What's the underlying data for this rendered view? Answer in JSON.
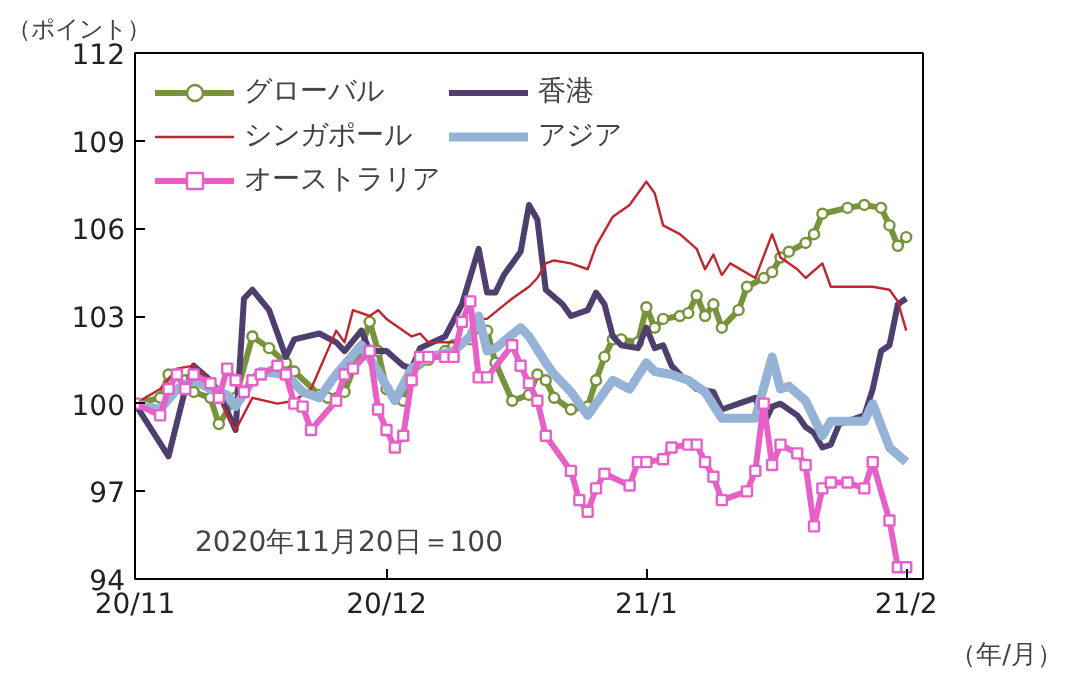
{
  "chart_data": {
    "type": "line",
    "ylabel": "（ポイント）",
    "xlabel": "（年/月）",
    "annotations": [
      "2020年11月20日＝100"
    ],
    "xlim": [
      "2020-11-01",
      "2021-02-03"
    ],
    "ylim": [
      94,
      112
    ],
    "xticks": [
      {
        "value": "2020-11-01",
        "label": "20/11"
      },
      {
        "value": "2020-12-01",
        "label": "20/12"
      },
      {
        "value": "2021-01-01",
        "label": "21/1"
      },
      {
        "value": "2021-02-01",
        "label": "21/2"
      }
    ],
    "yticks": [
      94,
      97,
      100,
      103,
      106,
      109,
      112
    ],
    "grid": false,
    "legend": "top left",
    "series": [
      {
        "name": "グローバル",
        "color": "#77933c",
        "marker": "circle",
        "x": [
          "2020-11-01",
          "2020-11-04",
          "2020-11-05",
          "2020-11-07",
          "2020-11-08",
          "2020-11-10",
          "2020-11-11",
          "2020-11-13",
          "2020-11-15",
          "2020-11-17",
          "2020-11-19",
          "2020-11-20",
          "2020-11-23",
          "2020-11-24",
          "2020-11-26",
          "2020-11-28",
          "2020-11-29",
          "2020-11-30",
          "2020-12-01",
          "2020-12-03",
          "2020-12-04",
          "2020-12-06",
          "2020-12-08",
          "2020-12-09",
          "2020-12-11",
          "2020-12-12",
          "2020-12-13",
          "2020-12-14",
          "2020-12-16",
          "2020-12-18",
          "2020-12-19",
          "2020-12-20",
          "2020-12-21",
          "2020-12-23",
          "2020-12-25",
          "2020-12-26",
          "2020-12-27",
          "2020-12-28",
          "2020-12-29",
          "2020-12-31",
          "2021-01-01",
          "2021-01-02",
          "2021-01-03",
          "2021-01-05",
          "2021-01-06",
          "2021-01-07",
          "2021-01-08",
          "2021-01-09",
          "2021-01-10",
          "2021-01-12",
          "2021-01-13",
          "2021-01-15",
          "2021-01-16",
          "2021-01-17",
          "2021-01-18",
          "2021-01-20",
          "2021-01-21",
          "2021-01-22",
          "2021-01-25",
          "2021-01-27",
          "2021-01-29",
          "2021-01-30",
          "2021-01-31",
          "2021-02-01"
        ],
        "values": [
          100,
          100.2,
          101.0,
          100.8,
          100.4,
          100.2,
          99.3,
          100.2,
          102.3,
          101.9,
          101.4,
          101.1,
          100.3,
          100.2,
          100.4,
          101.9,
          102.8,
          101.8,
          100.5,
          100.1,
          101.1,
          101.5,
          101.8,
          102.0,
          102.2,
          102.6,
          102.5,
          101.4,
          100.1,
          100.3,
          101.0,
          100.8,
          100.2,
          99.8,
          99.9,
          100.8,
          101.6,
          102.2,
          102.2,
          102.1,
          103.3,
          102.6,
          102.9,
          103.0,
          103.1,
          103.7,
          103.0,
          103.4,
          102.6,
          103.2,
          104.0,
          104.3,
          104.5,
          105.0,
          105.2,
          105.5,
          105.8,
          106.5,
          106.7,
          106.8,
          106.7,
          106.1,
          105.4,
          105.7
        ]
      },
      {
        "name": "香港",
        "color": "#4f3f6e",
        "marker": "none",
        "x": [
          "2020-11-01",
          "2020-11-05",
          "2020-11-07",
          "2020-11-08",
          "2020-11-10",
          "2020-11-11",
          "2020-11-13",
          "2020-11-14",
          "2020-11-15",
          "2020-11-17",
          "2020-11-18",
          "2020-11-19",
          "2020-11-20",
          "2020-11-23",
          "2020-11-25",
          "2020-11-26",
          "2020-11-28",
          "2020-11-29",
          "2020-12-01",
          "2020-12-03",
          "2020-12-04",
          "2020-12-05",
          "2020-12-08",
          "2020-12-10",
          "2020-12-12",
          "2020-12-13",
          "2020-12-14",
          "2020-12-15",
          "2020-12-17",
          "2020-12-18",
          "2020-12-19",
          "2020-12-20",
          "2020-12-22",
          "2020-12-23",
          "2020-12-25",
          "2020-12-26",
          "2020-12-27",
          "2020-12-28",
          "2020-12-29",
          "2020-12-31",
          "2021-01-01",
          "2021-01-02",
          "2021-01-03",
          "2021-01-04",
          "2021-01-05",
          "2021-01-07",
          "2021-01-09",
          "2021-01-10",
          "2021-01-12",
          "2021-01-14",
          "2021-01-15",
          "2021-01-16",
          "2021-01-17",
          "2021-01-19",
          "2021-01-20",
          "2021-01-21",
          "2021-01-22",
          "2021-01-23",
          "2021-01-24",
          "2021-01-27",
          "2021-01-28",
          "2021-01-29",
          "2021-01-30",
          "2021-01-31",
          "2021-02-01"
        ],
        "values": [
          100,
          98.2,
          100.5,
          101.3,
          100.8,
          100.4,
          99.1,
          103.6,
          103.9,
          103.2,
          102.4,
          101.6,
          102.2,
          102.4,
          102.1,
          101.8,
          102.5,
          101.8,
          101.8,
          101.3,
          101.2,
          101.9,
          102.3,
          103.4,
          105.3,
          103.8,
          103.8,
          104.4,
          105.2,
          106.8,
          106.3,
          103.9,
          103.4,
          103.0,
          103.2,
          103.8,
          103.4,
          102.3,
          102.0,
          101.9,
          102.6,
          101.9,
          102.0,
          101.3,
          101.0,
          100.5,
          100.4,
          99.8,
          100.0,
          100.2,
          99.3,
          99.9,
          100.0,
          99.6,
          99.2,
          99.0,
          98.5,
          98.6,
          99.3,
          99.6,
          100.5,
          101.8,
          102.0,
          103.4,
          103.6
        ]
      },
      {
        "name": "シンガポール",
        "color": "#c0262d",
        "marker": "none",
        "x": [
          "2020-11-01",
          "2020-11-04",
          "2020-11-06",
          "2020-11-08",
          "2020-11-10",
          "2020-11-12",
          "2020-11-13",
          "2020-11-15",
          "2020-11-18",
          "2020-11-20",
          "2020-11-22",
          "2020-11-25",
          "2020-11-26",
          "2020-11-27",
          "2020-11-29",
          "2020-11-30",
          "2020-12-01",
          "2020-12-04",
          "2020-12-05",
          "2020-12-06",
          "2020-12-09",
          "2020-12-10",
          "2020-12-12",
          "2020-12-13",
          "2020-12-16",
          "2020-12-18",
          "2020-12-19",
          "2020-12-20",
          "2020-12-21",
          "2020-12-23",
          "2020-12-25",
          "2020-12-26",
          "2020-12-28",
          "2020-12-30",
          "2021-01-01",
          "2021-01-02",
          "2021-01-03",
          "2021-01-05",
          "2021-01-07",
          "2021-01-08",
          "2021-01-09",
          "2021-01-10",
          "2021-01-11",
          "2021-01-14",
          "2021-01-16",
          "2021-01-17",
          "2021-01-19",
          "2021-01-20",
          "2021-01-22",
          "2021-01-23",
          "2021-01-26",
          "2021-01-28",
          "2021-01-30",
          "2021-01-31",
          "2021-02-01"
        ],
        "values": [
          100,
          100.5,
          101.2,
          101.3,
          100.8,
          99.6,
          99.1,
          100.2,
          100.0,
          100.1,
          100.5,
          102.5,
          102.1,
          103.2,
          103.0,
          103.2,
          102.9,
          102.3,
          102.4,
          102.1,
          102.1,
          102.1,
          102.9,
          102.9,
          103.6,
          104.0,
          104.3,
          104.8,
          104.9,
          104.8,
          104.6,
          105.4,
          106.4,
          106.8,
          107.6,
          107.2,
          106.1,
          105.8,
          105.3,
          104.6,
          105.1,
          104.4,
          104.8,
          104.3,
          105.8,
          105.0,
          104.6,
          104.3,
          104.8,
          104.0,
          104.0,
          104.0,
          103.9,
          103.5,
          102.5
        ]
      },
      {
        "name": "アジア",
        "color": "#95b3d7",
        "marker": "none",
        "x": [
          "2020-11-01",
          "2020-11-04",
          "2020-11-06",
          "2020-11-08",
          "2020-11-10",
          "2020-11-12",
          "2020-11-13",
          "2020-11-15",
          "2020-11-16",
          "2020-11-19",
          "2020-11-21",
          "2020-11-23",
          "2020-11-25",
          "2020-11-28",
          "2020-11-30",
          "2020-12-02",
          "2020-12-04",
          "2020-12-06",
          "2020-12-09",
          "2020-12-11",
          "2020-12-12",
          "2020-12-13",
          "2020-12-14",
          "2020-12-17",
          "2020-12-18",
          "2020-12-20",
          "2020-12-21",
          "2020-12-23",
          "2020-12-25",
          "2020-12-27",
          "2020-12-28",
          "2020-12-30",
          "2021-01-01",
          "2021-01-02",
          "2021-01-04",
          "2021-01-06",
          "2021-01-08",
          "2021-01-10",
          "2021-01-14",
          "2021-01-16",
          "2021-01-17",
          "2021-01-18",
          "2021-01-20",
          "2021-01-21",
          "2021-01-22",
          "2021-01-23",
          "2021-01-26",
          "2021-01-27",
          "2021-01-28",
          "2021-01-30",
          "2021-02-01"
        ],
        "values": [
          100,
          99.8,
          100.5,
          100.8,
          100.5,
          100.3,
          99.9,
          100.8,
          101.1,
          101.0,
          100.4,
          100.2,
          101.0,
          102.0,
          101.1,
          100.1,
          101.2,
          101.6,
          101.8,
          102.3,
          103.0,
          101.8,
          101.9,
          102.6,
          102.3,
          101.4,
          101.0,
          100.4,
          99.6,
          100.4,
          100.8,
          100.5,
          101.4,
          101.1,
          101.0,
          100.8,
          100.4,
          99.5,
          99.5,
          101.6,
          100.5,
          100.6,
          100.1,
          99.5,
          98.9,
          99.4,
          99.4,
          99.4,
          100.0,
          98.5,
          98.0
        ]
      },
      {
        "name": "オーストラリア",
        "color": "#e660c8",
        "marker": "square",
        "x": [
          "2020-11-01",
          "2020-11-04",
          "2020-11-05",
          "2020-11-06",
          "2020-11-07",
          "2020-11-08",
          "2020-11-10",
          "2020-11-11",
          "2020-11-12",
          "2020-11-13",
          "2020-11-14",
          "2020-11-15",
          "2020-11-16",
          "2020-11-18",
          "2020-11-19",
          "2020-11-20",
          "2020-11-21",
          "2020-11-22",
          "2020-11-25",
          "2020-11-26",
          "2020-11-27",
          "2020-11-29",
          "2020-11-30",
          "2020-12-01",
          "2020-12-02",
          "2020-12-03",
          "2020-12-04",
          "2020-12-05",
          "2020-12-06",
          "2020-12-08",
          "2020-12-09",
          "2020-12-10",
          "2020-12-11",
          "2020-12-12",
          "2020-12-13",
          "2020-12-16",
          "2020-12-17",
          "2020-12-18",
          "2020-12-19",
          "2020-12-20",
          "2020-12-23",
          "2020-12-24",
          "2020-12-25",
          "2020-12-26",
          "2020-12-27",
          "2020-12-30",
          "2020-12-31",
          "2021-01-01",
          "2021-01-03",
          "2021-01-04",
          "2021-01-06",
          "2021-01-07",
          "2021-01-08",
          "2021-01-09",
          "2021-01-10",
          "2021-01-13",
          "2021-01-14",
          "2021-01-15",
          "2021-01-16",
          "2021-01-17",
          "2021-01-19",
          "2021-01-20",
          "2021-01-21",
          "2021-01-22",
          "2021-01-23",
          "2021-01-25",
          "2021-01-27",
          "2021-01-28",
          "2021-01-30",
          "2021-01-31",
          "2021-02-01"
        ],
        "values": [
          100,
          99.6,
          100.5,
          101.0,
          100.5,
          101.0,
          100.7,
          100.2,
          101.2,
          100.8,
          100.4,
          100.8,
          101.0,
          101.3,
          101.0,
          100.0,
          99.9,
          99.1,
          100.1,
          101.0,
          101.2,
          101.8,
          99.8,
          99.1,
          98.5,
          98.9,
          100.8,
          101.6,
          101.6,
          101.6,
          101.6,
          102.8,
          103.5,
          100.9,
          100.9,
          102.0,
          101.3,
          100.7,
          100.1,
          98.9,
          97.7,
          96.7,
          96.3,
          97.1,
          97.6,
          97.2,
          98.0,
          98.0,
          98.1,
          98.5,
          98.6,
          98.6,
          98.0,
          97.5,
          96.7,
          97.0,
          97.7,
          100.0,
          97.9,
          98.6,
          98.3,
          97.9,
          95.8,
          97.1,
          97.3,
          97.3,
          97.1,
          98.0,
          96.0,
          94.4,
          94.4
        ]
      }
    ]
  }
}
